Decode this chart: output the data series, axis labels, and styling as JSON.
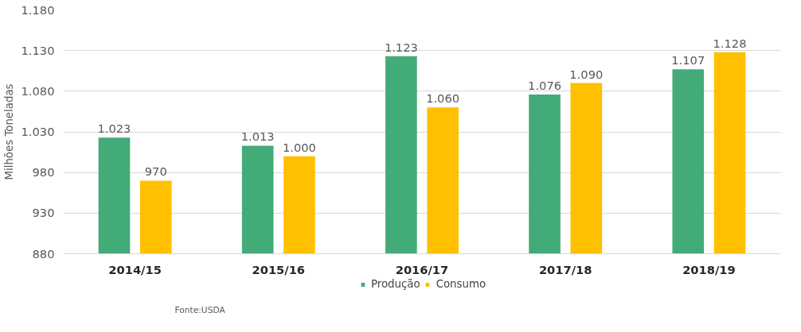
{
  "chart_data": {
    "type": "bar",
    "ylabel": "Milhões Toneladas",
    "categories": [
      "2014/15",
      "2015/16",
      "2016/17",
      "2017/18",
      "2018/19"
    ],
    "series": [
      {
        "name": "Produção",
        "color": "#43ab77",
        "values": [
          1023,
          1013,
          1123,
          1076,
          1107
        ],
        "value_labels": [
          "1.023",
          "1.013",
          "1.123",
          "1.076",
          "1.107"
        ]
      },
      {
        "name": "Consumo",
        "color": "#ffc000",
        "values": [
          970,
          1000,
          1060,
          1090,
          1128
        ],
        "value_labels": [
          "970",
          "1.000",
          "1.060",
          "1.090",
          "1.128"
        ]
      }
    ],
    "ylim": [
      880,
      1180
    ],
    "yticks": [
      880,
      930,
      980,
      {
        "value": 1030,
        "label": "1.030"
      },
      {
        "value": 1080,
        "label": "1.080"
      },
      {
        "value": 1130,
        "label": "1.130"
      },
      {
        "value": 1180,
        "label": "1.180"
      }
    ],
    "grid": "y",
    "legend": "bottom",
    "annotations": [
      "Fonte:USDA"
    ]
  }
}
